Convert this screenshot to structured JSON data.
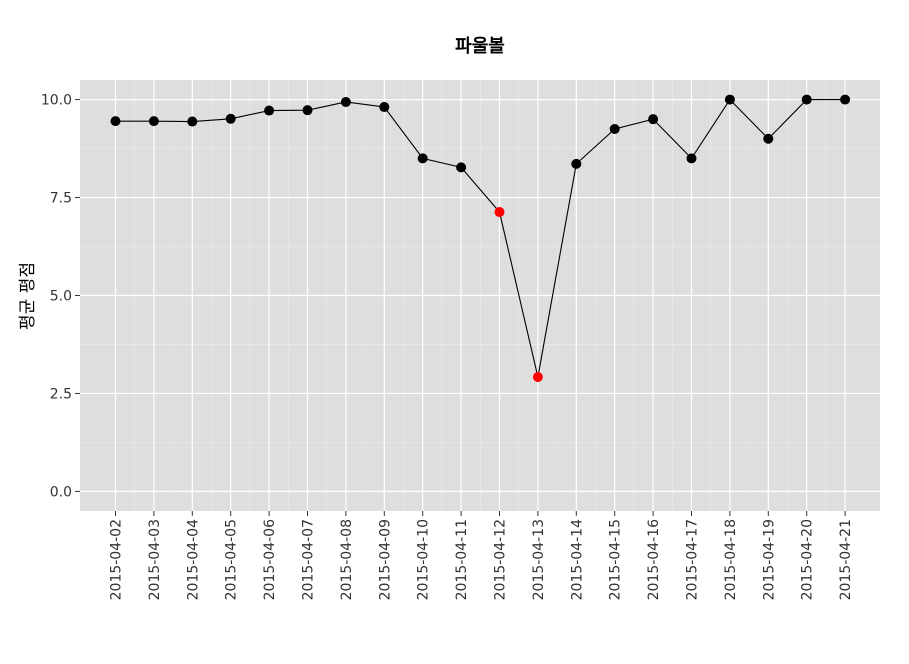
{
  "chart_data": {
    "type": "line",
    "title": "파울볼",
    "xlabel": "",
    "ylabel": "평균 평점",
    "ylim": [
      -0.5,
      10.5
    ],
    "yticks": [
      {
        "value": 0,
        "label": "0.0"
      },
      {
        "value": 2.5,
        "label": "2.5"
      },
      {
        "value": 5,
        "label": "5.0"
      },
      {
        "value": 7.5,
        "label": "7.5"
      },
      {
        "value": 10,
        "label": "10.0"
      }
    ],
    "grid": true,
    "categories": [
      "2015-04-02",
      "2015-04-03",
      "2015-04-04",
      "2015-04-05",
      "2015-04-06",
      "2015-04-07",
      "2015-04-08",
      "2015-04-09",
      "2015-04-10",
      "2015-04-11",
      "2015-04-12",
      "2015-04-13",
      "2015-04-14",
      "2015-04-15",
      "2015-04-16",
      "2015-04-17",
      "2015-04-18",
      "2015-04-19",
      "2015-04-20",
      "2015-04-21"
    ],
    "values": [
      9.45,
      9.45,
      9.44,
      9.51,
      9.72,
      9.73,
      9.94,
      9.81,
      8.5,
      8.27,
      7.13,
      2.92,
      8.36,
      9.25,
      9.5,
      8.5,
      10.0,
      9.0,
      10.0,
      10.0
    ],
    "point_colors": [
      "#000000",
      "#000000",
      "#000000",
      "#000000",
      "#000000",
      "#000000",
      "#000000",
      "#000000",
      "#000000",
      "#000000",
      "#ff0000",
      "#ff0000",
      "#000000",
      "#000000",
      "#000000",
      "#000000",
      "#000000",
      "#000000",
      "#000000",
      "#000000"
    ],
    "colors": {
      "panel": "#dedede",
      "grid_major": "#ffffff",
      "grid_minor": "#ebebeb",
      "line": "#000000",
      "highlight": "#ff0000"
    }
  }
}
